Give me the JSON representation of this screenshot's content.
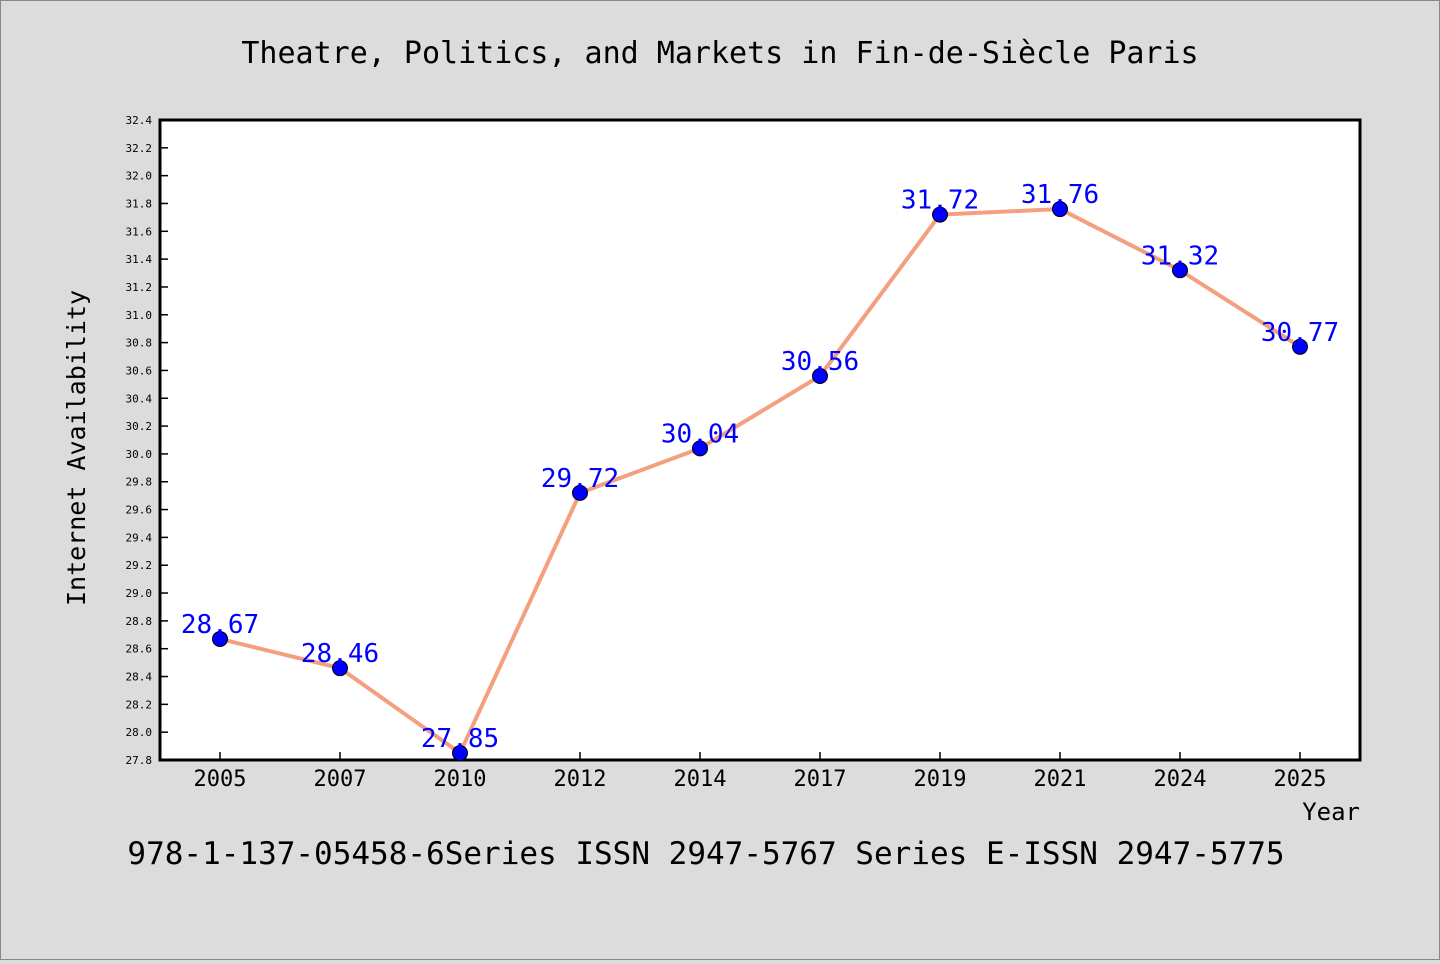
{
  "chart_data": {
    "type": "line",
    "title": "Theatre, Politics, and Markets in Fin-de-Siècle Paris",
    "xlabel": "Year",
    "ylabel": "Internet Availability",
    "footer": "978-1-137-05458-6Series ISSN 2947-5767 Series E-ISSN 2947-5775",
    "categories": [
      "2005",
      "2007",
      "2010",
      "2012",
      "2014",
      "2017",
      "2019",
      "2021",
      "2024",
      "2025"
    ],
    "series": [
      {
        "values": [
          28.67,
          28.46,
          27.85,
          29.72,
          30.04,
          30.56,
          31.72,
          31.76,
          31.32,
          30.77
        ],
        "labels": [
          "28.67",
          "28.46",
          "27.85",
          "29.72",
          "30.04",
          "30.56",
          "31.72",
          "31.76",
          "31.32",
          "30.77"
        ]
      }
    ],
    "ylim": [
      27.8,
      32.4
    ],
    "yticks": [
      "27.8",
      "28.0",
      "28.2",
      "28.4",
      "28.6",
      "28.8",
      "29.0",
      "29.2",
      "29.4",
      "29.6",
      "29.8",
      "30.0",
      "30.2",
      "30.4",
      "30.6",
      "30.8",
      "31.0",
      "31.2",
      "31.4",
      "31.6",
      "31.8",
      "32.0",
      "32.2",
      "32.4"
    ],
    "grid": false,
    "legend": "none",
    "colors": {
      "background": "#dcdcdc",
      "plot_background": "#ffffff",
      "line": "#f4a07f",
      "marker": "#0000ff",
      "data_label": "#0000ff",
      "text": "#000000"
    }
  }
}
